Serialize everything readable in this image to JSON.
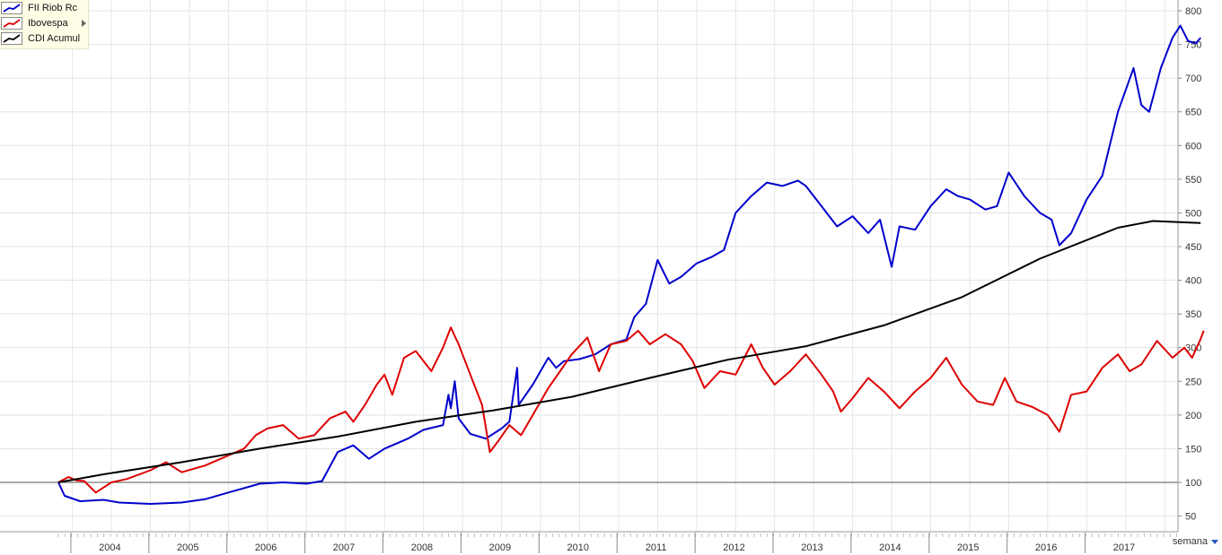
{
  "chart_data": {
    "type": "line",
    "y_axis": {
      "min": 30,
      "max": 810,
      "ticks": [
        50,
        100,
        150,
        200,
        250,
        300,
        350,
        400,
        450,
        500,
        550,
        600,
        650,
        700,
        750,
        800
      ],
      "position": "right",
      "scale": "linear"
    },
    "x_axis": {
      "min": 2003.42,
      "max": 2017.7,
      "year_labels": [
        "2004",
        "2005",
        "2006",
        "2007",
        "2008",
        "2009",
        "2010",
        "2011",
        "2012",
        "2013",
        "2014",
        "2015",
        "2016",
        "2017"
      ]
    },
    "baseline": 100,
    "grid": true,
    "legend_position": "top-left",
    "series": [
      {
        "name": "FII Riob Rc",
        "color": "#0000cc",
        "points": [
          [
            2003.42,
            100
          ],
          [
            2003.5,
            80
          ],
          [
            2003.7,
            72
          ],
          [
            2004.0,
            74
          ],
          [
            2004.2,
            70
          ],
          [
            2004.6,
            68
          ],
          [
            2005.0,
            70
          ],
          [
            2005.3,
            75
          ],
          [
            2005.6,
            85
          ],
          [
            2006.0,
            98
          ],
          [
            2006.3,
            100
          ],
          [
            2006.6,
            98
          ],
          [
            2006.8,
            102
          ],
          [
            2007.0,
            145
          ],
          [
            2007.2,
            155
          ],
          [
            2007.4,
            135
          ],
          [
            2007.6,
            150
          ],
          [
            2007.9,
            165
          ],
          [
            2008.1,
            178
          ],
          [
            2008.35,
            185
          ],
          [
            2008.42,
            230
          ],
          [
            2008.45,
            210
          ],
          [
            2008.5,
            250
          ],
          [
            2008.55,
            195
          ],
          [
            2008.7,
            172
          ],
          [
            2008.9,
            165
          ],
          [
            2009.1,
            180
          ],
          [
            2009.2,
            190
          ],
          [
            2009.3,
            270
          ],
          [
            2009.32,
            215
          ],
          [
            2009.5,
            245
          ],
          [
            2009.6,
            265
          ],
          [
            2009.7,
            285
          ],
          [
            2009.8,
            270
          ],
          [
            2009.9,
            280
          ],
          [
            2010.1,
            283
          ],
          [
            2010.3,
            290
          ],
          [
            2010.5,
            305
          ],
          [
            2010.7,
            312
          ],
          [
            2010.8,
            345
          ],
          [
            2010.95,
            365
          ],
          [
            2011.1,
            430
          ],
          [
            2011.25,
            395
          ],
          [
            2011.4,
            405
          ],
          [
            2011.6,
            425
          ],
          [
            2011.8,
            435
          ],
          [
            2011.95,
            445
          ],
          [
            2012.1,
            500
          ],
          [
            2012.3,
            525
          ],
          [
            2012.5,
            545
          ],
          [
            2012.7,
            540
          ],
          [
            2012.9,
            548
          ],
          [
            2013.0,
            540
          ],
          [
            2013.2,
            510
          ],
          [
            2013.4,
            480
          ],
          [
            2013.6,
            495
          ],
          [
            2013.8,
            470
          ],
          [
            2013.95,
            490
          ],
          [
            2014.1,
            420
          ],
          [
            2014.2,
            480
          ],
          [
            2014.4,
            475
          ],
          [
            2014.6,
            510
          ],
          [
            2014.8,
            535
          ],
          [
            2014.95,
            525
          ],
          [
            2015.1,
            520
          ],
          [
            2015.3,
            505
          ],
          [
            2015.45,
            510
          ],
          [
            2015.6,
            560
          ],
          [
            2015.8,
            525
          ],
          [
            2016.0,
            500
          ],
          [
            2016.15,
            490
          ],
          [
            2016.25,
            452
          ],
          [
            2016.4,
            470
          ],
          [
            2016.6,
            520
          ],
          [
            2016.8,
            555
          ],
          [
            2017.0,
            650
          ],
          [
            2017.2,
            715
          ],
          [
            2017.3,
            660
          ],
          [
            2017.4,
            650
          ],
          [
            2017.55,
            715
          ],
          [
            2017.7,
            760
          ],
          [
            2017.8,
            778
          ],
          [
            2017.9,
            755
          ],
          [
            2018.0,
            752
          ],
          [
            2018.06,
            760
          ]
        ]
      },
      {
        "name": "Ibovespa",
        "color": "#dd0000",
        "points": [
          [
            2003.42,
            100
          ],
          [
            2003.55,
            108
          ],
          [
            2003.65,
            103
          ],
          [
            2003.75,
            102
          ],
          [
            2003.9,
            85
          ],
          [
            2004.1,
            100
          ],
          [
            2004.3,
            105
          ],
          [
            2004.6,
            118
          ],
          [
            2004.8,
            130
          ],
          [
            2005.0,
            115
          ],
          [
            2005.3,
            125
          ],
          [
            2005.5,
            135
          ],
          [
            2005.8,
            150
          ],
          [
            2005.95,
            170
          ],
          [
            2006.1,
            180
          ],
          [
            2006.3,
            185
          ],
          [
            2006.5,
            165
          ],
          [
            2006.7,
            170
          ],
          [
            2006.9,
            195
          ],
          [
            2007.1,
            205
          ],
          [
            2007.2,
            190
          ],
          [
            2007.35,
            215
          ],
          [
            2007.5,
            245
          ],
          [
            2007.6,
            260
          ],
          [
            2007.7,
            230
          ],
          [
            2007.85,
            285
          ],
          [
            2008.0,
            295
          ],
          [
            2008.2,
            265
          ],
          [
            2008.35,
            300
          ],
          [
            2008.45,
            330
          ],
          [
            2008.55,
            305
          ],
          [
            2008.7,
            260
          ],
          [
            2008.85,
            215
          ],
          [
            2008.95,
            145
          ],
          [
            2009.05,
            160
          ],
          [
            2009.2,
            185
          ],
          [
            2009.35,
            170
          ],
          [
            2009.5,
            200
          ],
          [
            2009.7,
            240
          ],
          [
            2009.85,
            265
          ],
          [
            2010.0,
            290
          ],
          [
            2010.2,
            315
          ],
          [
            2010.35,
            265
          ],
          [
            2010.5,
            305
          ],
          [
            2010.7,
            310
          ],
          [
            2010.85,
            325
          ],
          [
            2011.0,
            305
          ],
          [
            2011.2,
            320
          ],
          [
            2011.4,
            305
          ],
          [
            2011.55,
            280
          ],
          [
            2011.7,
            240
          ],
          [
            2011.9,
            265
          ],
          [
            2012.1,
            260
          ],
          [
            2012.3,
            305
          ],
          [
            2012.45,
            270
          ],
          [
            2012.6,
            245
          ],
          [
            2012.8,
            265
          ],
          [
            2013.0,
            290
          ],
          [
            2013.2,
            260
          ],
          [
            2013.35,
            235
          ],
          [
            2013.45,
            205
          ],
          [
            2013.6,
            225
          ],
          [
            2013.8,
            255
          ],
          [
            2014.0,
            235
          ],
          [
            2014.2,
            210
          ],
          [
            2014.4,
            235
          ],
          [
            2014.6,
            255
          ],
          [
            2014.8,
            285
          ],
          [
            2015.0,
            245
          ],
          [
            2015.2,
            220
          ],
          [
            2015.4,
            215
          ],
          [
            2015.55,
            255
          ],
          [
            2015.7,
            220
          ],
          [
            2015.9,
            212
          ],
          [
            2016.1,
            200
          ],
          [
            2016.25,
            175
          ],
          [
            2016.4,
            230
          ],
          [
            2016.6,
            235
          ],
          [
            2016.8,
            270
          ],
          [
            2017.0,
            290
          ],
          [
            2017.15,
            265
          ],
          [
            2017.3,
            275
          ],
          [
            2017.5,
            310
          ],
          [
            2017.7,
            285
          ],
          [
            2017.85,
            300
          ],
          [
            2017.95,
            285
          ],
          [
            2018.05,
            310
          ],
          [
            2018.1,
            325
          ]
        ]
      },
      {
        "name": "CDI Acumul",
        "color": "#000000",
        "points": [
          [
            2003.42,
            100
          ],
          [
            2004,
            112
          ],
          [
            2005,
            130
          ],
          [
            2006,
            150
          ],
          [
            2007,
            168
          ],
          [
            2008,
            190
          ],
          [
            2009,
            207
          ],
          [
            2010,
            227
          ],
          [
            2011,
            255
          ],
          [
            2012,
            282
          ],
          [
            2013,
            302
          ],
          [
            2014,
            333
          ],
          [
            2015,
            375
          ],
          [
            2016,
            432
          ],
          [
            2017,
            478
          ],
          [
            2017.45,
            488
          ],
          [
            2018.06,
            485
          ]
        ]
      }
    ]
  },
  "legend": {
    "items": [
      {
        "label": "FII Riob Rc",
        "color": "#0000cc"
      },
      {
        "label": "Ibovespa",
        "color": "#dd0000"
      },
      {
        "label": "CDI Acumul",
        "color": "#000000"
      }
    ]
  },
  "period_selector": {
    "label": "semana"
  }
}
